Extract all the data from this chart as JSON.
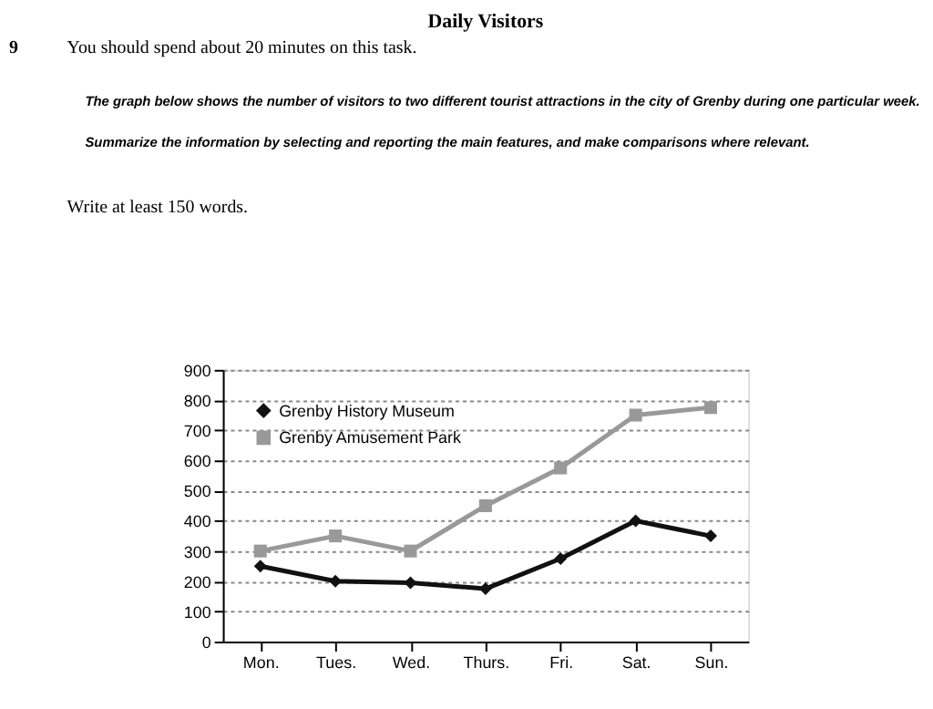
{
  "chart_data": {
    "type": "line",
    "title": "Daily Visitors",
    "annotations": [
      "9",
      "You should spend about 20 minutes on this task.",
      "The graph below shows the number of visitors to two different tourist attractions in the city of Grenby during one particular week.",
      "Summarize the information by selecting and reporting the main features, and make comparisons where relevant.",
      "Write at least 150 words."
    ],
    "categories": [
      "Mon.",
      "Tues.",
      "Wed.",
      "Thurs.",
      "Fri.",
      "Sat.",
      "Sun."
    ],
    "series": [
      {
        "name": "Grenby History Museum",
        "color": "#111111",
        "marker": "diamond",
        "values": [
          250,
          200,
          195,
          175,
          275,
          400,
          350
        ]
      },
      {
        "name": "Grenby Amusement Park",
        "color": "#999999",
        "marker": "square",
        "values": [
          300,
          350,
          300,
          450,
          575,
          750,
          775
        ]
      }
    ],
    "ylim": [
      0,
      900
    ],
    "yticks": [
      0,
      100,
      200,
      300,
      400,
      500,
      600,
      700,
      800,
      900
    ],
    "grid": "y",
    "legend": "top left",
    "line_style": "solid"
  }
}
